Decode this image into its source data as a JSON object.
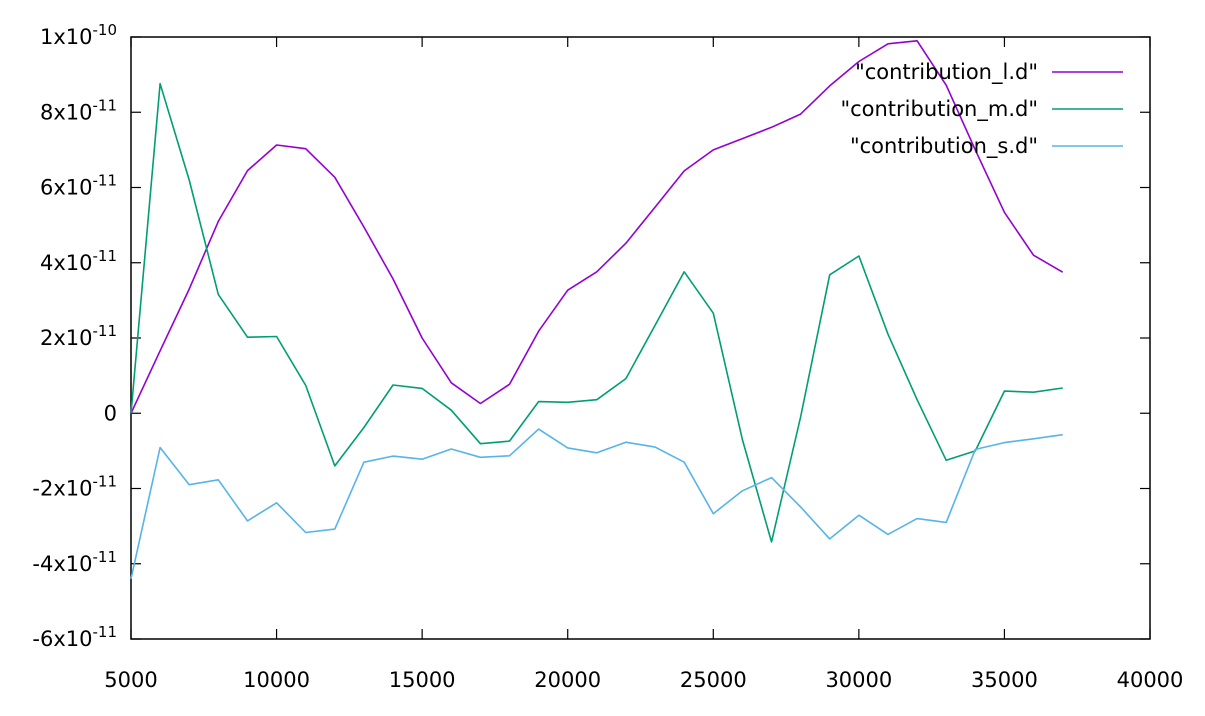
{
  "chart_data": {
    "type": "line",
    "title": "",
    "xlabel": "",
    "ylabel": "",
    "xlim": [
      5000,
      40000
    ],
    "ylim": [
      -6e-11,
      1e-10
    ],
    "x_ticks": [
      5000,
      10000,
      15000,
      20000,
      25000,
      30000,
      35000,
      40000
    ],
    "x_tick_labels": [
      "5000",
      "10000",
      "15000",
      "20000",
      "25000",
      "30000",
      "35000",
      "40000"
    ],
    "y_ticks": [
      1e-10,
      8e-11,
      6e-11,
      4e-11,
      2e-11,
      0,
      -2e-11,
      -4e-11,
      -6e-11
    ],
    "y_tick_labels": [
      {
        "mant": "1x10",
        "exp": "-10"
      },
      {
        "mant": "8x10",
        "exp": "-11"
      },
      {
        "mant": "6x10",
        "exp": "-11"
      },
      {
        "mant": "4x10",
        "exp": "-11"
      },
      {
        "mant": "2x10",
        "exp": "-11"
      },
      {
        "mant": "0",
        "exp": ""
      },
      {
        "mant": "-2x10",
        "exp": "-11"
      },
      {
        "mant": "-4x10",
        "exp": "-11"
      },
      {
        "mant": "-6x10",
        "exp": "-11"
      }
    ],
    "grid": false,
    "legend_position": "top-right",
    "x": [
      5000,
      6000,
      7000,
      8000,
      9000,
      10000,
      11000,
      12000,
      13000,
      14000,
      15000,
      16000,
      17000,
      18000,
      19000,
      20000,
      21000,
      22000,
      23000,
      24000,
      25000,
      26000,
      27000,
      28000,
      29000,
      30000,
      31000,
      32000,
      33000,
      34000,
      35000,
      36000,
      37000
    ],
    "series": [
      {
        "name": "\"contribution_l.d\"",
        "color": "#9400d3",
        "values": [
          0,
          1.66e-11,
          3.3e-11,
          5.1e-11,
          6.45e-11,
          7.13e-11,
          7.03e-11,
          6.27e-11,
          4.95e-11,
          3.57e-11,
          2e-11,
          8.1e-12,
          2.6e-12,
          7.7e-12,
          2.18e-11,
          3.27e-11,
          3.76e-11,
          4.52e-11,
          5.48e-11,
          6.44e-11,
          7e-11,
          7.3e-11,
          7.6e-11,
          7.95e-11,
          8.7e-11,
          9.35e-11,
          9.82e-11,
          9.9e-11,
          8.72e-11,
          7e-11,
          5.34e-11,
          4.2e-11,
          3.75e-11
        ]
      },
      {
        "name": "\"contribution_m.d\"",
        "color": "#009e73",
        "values": [
          0,
          8.76e-11,
          6.2e-11,
          3.16e-11,
          2.02e-11,
          2.04e-11,
          7.4e-12,
          -1.4e-11,
          -3.8e-12,
          7.5e-12,
          6.6e-12,
          8e-13,
          -8.1e-12,
          -7.4e-12,
          3.1e-12,
          2.9e-12,
          3.6e-12,
          9.2e-12,
          2.34e-11,
          3.76e-11,
          2.66e-11,
          -7e-12,
          -3.42e-11,
          -1e-12,
          3.68e-11,
          4.18e-11,
          2.1e-11,
          3.6e-12,
          -1.25e-11,
          -1e-11,
          5.9e-12,
          5.6e-12,
          6.7e-12
        ]
      },
      {
        "name": "\"contribution_s.d\"",
        "color": "#56b4e9",
        "values": [
          -4.4e-11,
          -9.1e-12,
          -1.9e-11,
          -1.77e-11,
          -2.86e-11,
          -2.38e-11,
          -3.17e-11,
          -3.08e-11,
          -1.3e-11,
          -1.14e-11,
          -1.22e-11,
          -9.5e-12,
          -1.17e-11,
          -1.13e-11,
          -4.2e-12,
          -9.2e-12,
          -1.05e-11,
          -7.7e-12,
          -9e-12,
          -1.3e-11,
          -2.67e-11,
          -2.06e-11,
          -1.71e-11,
          -2.49e-11,
          -3.34e-11,
          -2.71e-11,
          -3.22e-11,
          -2.8e-11,
          -2.9e-11,
          -9.6e-12,
          -7.8e-12,
          -6.8e-12,
          -5.7e-12
        ]
      }
    ]
  }
}
